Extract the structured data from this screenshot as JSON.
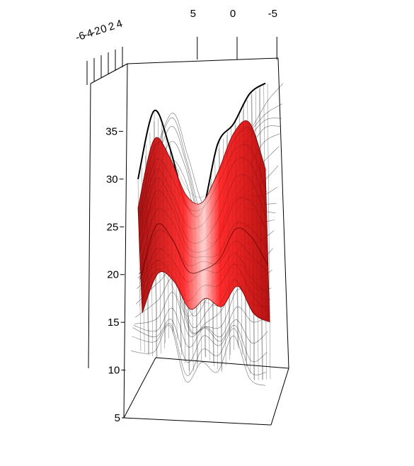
{
  "chart_data": {
    "type": "surface3d",
    "title": "",
    "xlabel": "",
    "ylabel": "",
    "zlabel": "",
    "x_ticks": [
      "5",
      "0",
      "-5"
    ],
    "y_ticks": [
      "-6",
      "-4",
      "-2",
      "0",
      "2",
      "4"
    ],
    "z_ticks": [
      "5",
      "10",
      "15",
      "20",
      "25",
      "30",
      "35"
    ],
    "xlim": [
      -8,
      8
    ],
    "ylim": [
      -6,
      4
    ],
    "zlim": [
      5,
      40
    ],
    "series": [
      {
        "style": "wireframe",
        "color": "#000000",
        "x": [
          8,
          6,
          4,
          2,
          0,
          -2,
          -4,
          -6,
          -8
        ],
        "top_z": [
          30,
          37,
          33,
          27,
          26,
          33,
          35,
          38,
          39
        ],
        "bottom_z": [
          12,
          11,
          14,
          9,
          11,
          9,
          12,
          8,
          8
        ]
      },
      {
        "style": "solid",
        "color": "#ff0000",
        "x": [
          8,
          6,
          4,
          2,
          0,
          -2,
          -4,
          -6,
          -8
        ],
        "top_z": [
          27,
          34,
          32,
          28,
          27,
          30,
          34,
          35,
          30
        ],
        "bottom_z": [
          16,
          20,
          19,
          16,
          17,
          16,
          18,
          15,
          14
        ]
      }
    ]
  }
}
